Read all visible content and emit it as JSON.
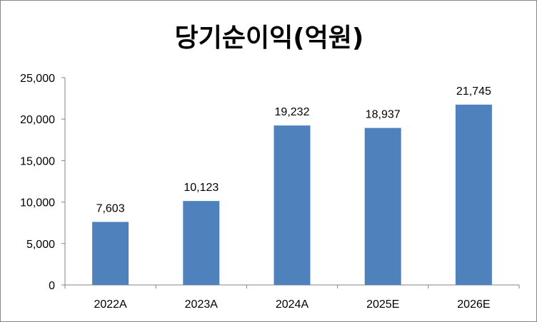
{
  "chart_data": {
    "type": "bar",
    "title": "당기순이익(억원)",
    "categories": [
      "2022A",
      "2023A",
      "2024A",
      "2025E",
      "2026E"
    ],
    "values": [
      7603,
      10123,
      19232,
      18937,
      21745
    ],
    "value_labels": [
      "7,603",
      "10,123",
      "19,232",
      "18,937",
      "21,745"
    ],
    "ylim": [
      0,
      25000
    ],
    "yticks": [
      0,
      5000,
      10000,
      15000,
      20000,
      25000
    ],
    "ytick_labels": [
      "0",
      "5,000",
      "10,000",
      "15,000",
      "20,000",
      "25,000"
    ],
    "grid": false,
    "legend": "none",
    "bar_color": "#4f81bd"
  }
}
